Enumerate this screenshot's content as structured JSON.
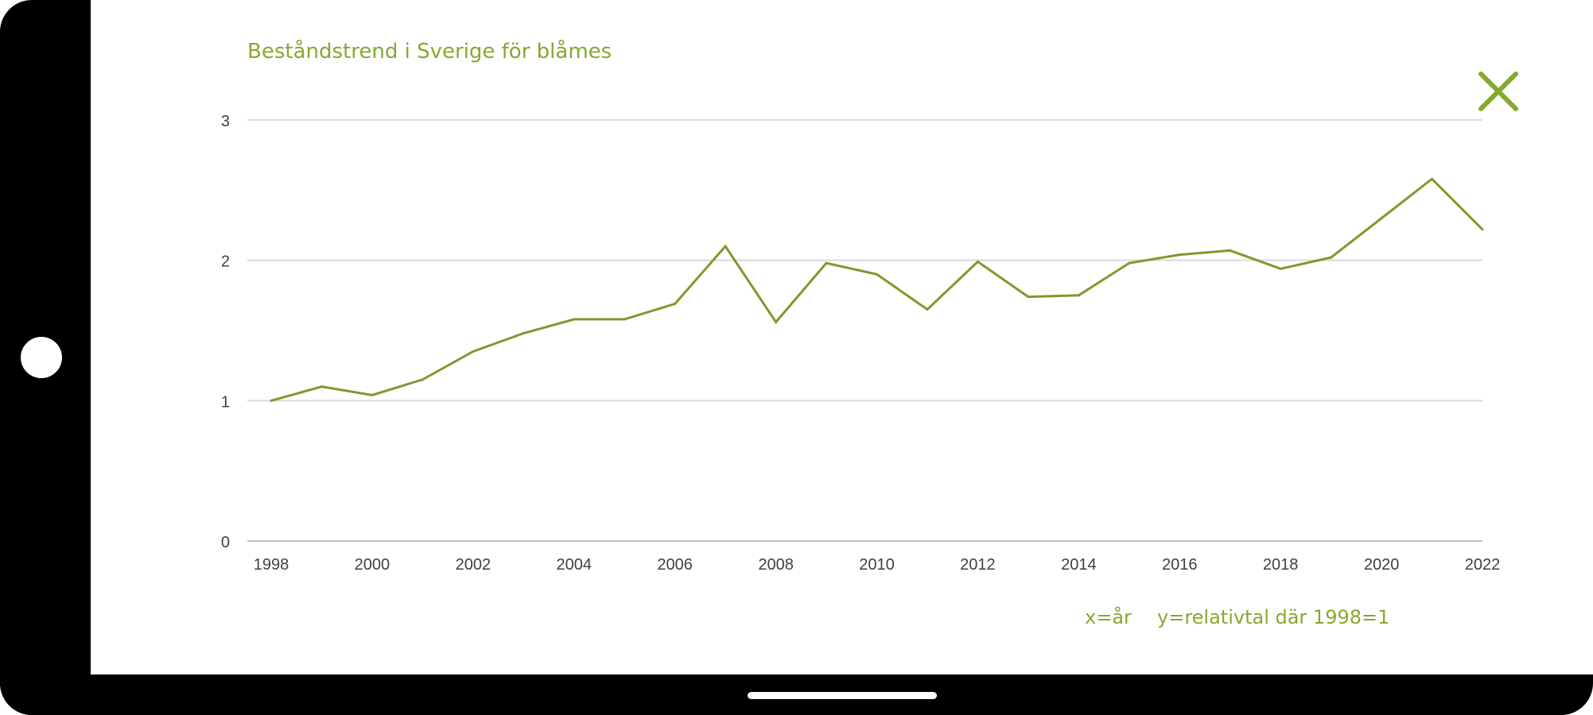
{
  "colors": {
    "accent": "#86a831",
    "line": "#7d9a2c",
    "grid": "#d9d9d9",
    "frame": "#000000"
  },
  "icons": {
    "close": "close-icon"
  },
  "chart_data": {
    "type": "line",
    "title": "Beståndstrend i Sverige för blåmes",
    "xlabel": "x=år",
    "ylabel": "y=relativtal där 1998=1",
    "x": [
      1998,
      1999,
      2000,
      2001,
      2002,
      2003,
      2004,
      2005,
      2006,
      2007,
      2008,
      2009,
      2010,
      2011,
      2012,
      2013,
      2014,
      2015,
      2016,
      2017,
      2018,
      2019,
      2020,
      2021,
      2022
    ],
    "series": [
      {
        "values": [
          1.0,
          1.1,
          1.04,
          1.15,
          1.35,
          1.48,
          1.58,
          1.58,
          1.69,
          2.1,
          1.56,
          1.98,
          1.9,
          1.65,
          1.99,
          1.74,
          1.75,
          1.98,
          2.04,
          2.07,
          1.94,
          2.02,
          2.3,
          2.58,
          2.22
        ]
      }
    ],
    "xticks": [
      "1998",
      "2000",
      "2002",
      "2004",
      "2006",
      "2008",
      "2010",
      "2012",
      "2014",
      "2016",
      "2018",
      "2020",
      "2022"
    ],
    "yticks": [
      "0",
      "1",
      "2",
      "3"
    ],
    "xlim": [
      1998,
      2022
    ],
    "ylim": [
      0,
      3
    ],
    "grid": true,
    "legend": false
  }
}
